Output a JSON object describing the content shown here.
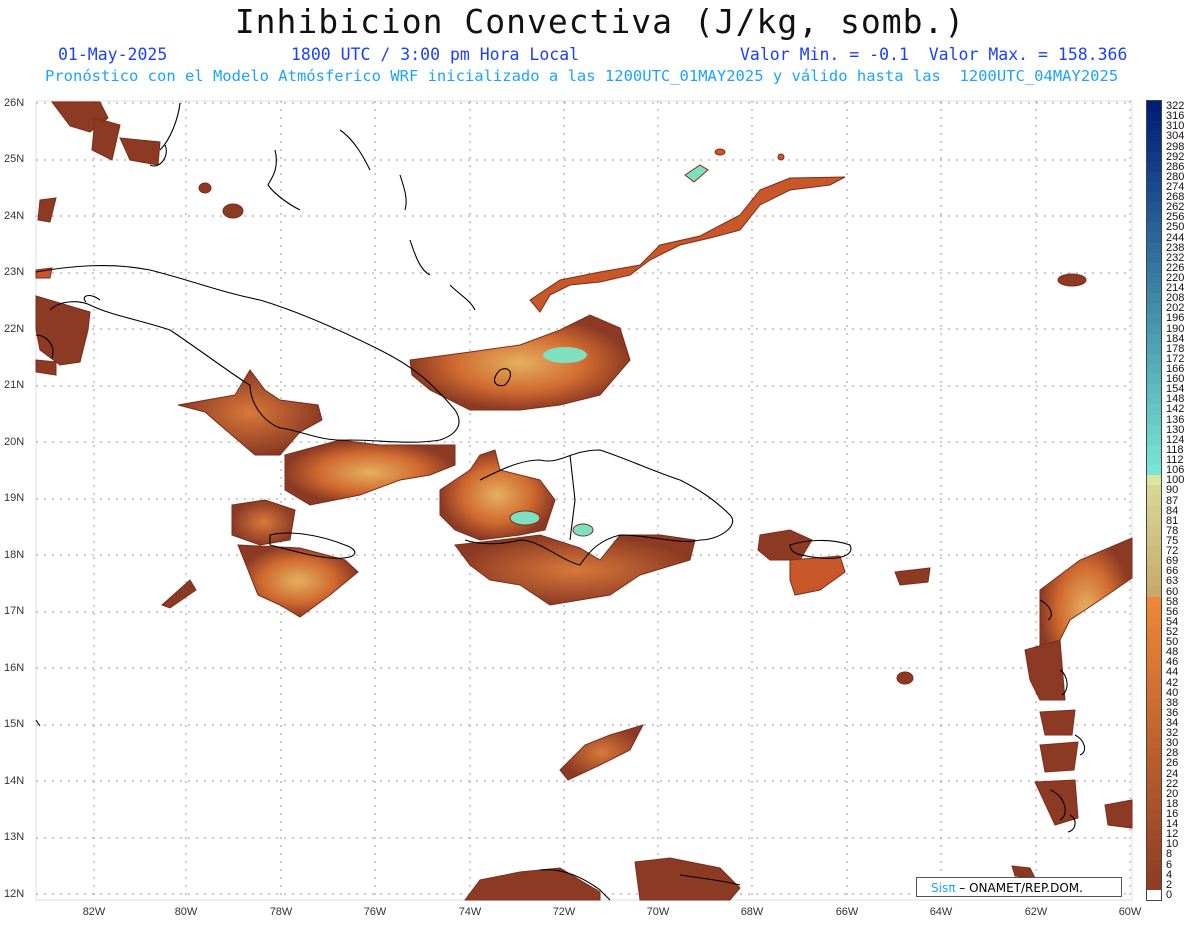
{
  "title": "Inhibicion Convectiva (J/kg, somb.)",
  "header": {
    "date": "01-May-2025",
    "time": "1800 UTC / 3:00 pm Hora Local",
    "minmax": "Valor Min. = -0.1  Valor Max. = 158.366",
    "forecast": "Pronóstico con el Modelo Atmósferico WRF inicializado a las 1200UTC_01MAY2025 y válido hasta las  1200UTC_04MAY2025"
  },
  "lat_labels": [
    "26N",
    "25N",
    "24N",
    "23N",
    "22N",
    "21N",
    "20N",
    "19N",
    "18N",
    "17N",
    "16N",
    "15N",
    "14N",
    "13N",
    "12N"
  ],
  "lon_labels": [
    "82W",
    "80W",
    "78W",
    "76W",
    "74W",
    "72W",
    "70W",
    "68W",
    "66W",
    "64W",
    "62W",
    "60W"
  ],
  "colorbar_labels": [
    "322",
    "316",
    "310",
    "304",
    "298",
    "292",
    "286",
    "280",
    "274",
    "268",
    "262",
    "256",
    "250",
    "244",
    "238",
    "232",
    "226",
    "220",
    "214",
    "208",
    "202",
    "196",
    "190",
    "184",
    "178",
    "172",
    "166",
    "160",
    "154",
    "148",
    "142",
    "136",
    "130",
    "124",
    "118",
    "112",
    "106",
    "100",
    "90",
    "87",
    "84",
    "81",
    "78",
    "75",
    "72",
    "69",
    "66",
    "63",
    "60",
    "58",
    "56",
    "54",
    "52",
    "50",
    "48",
    "46",
    "44",
    "42",
    "40",
    "38",
    "36",
    "34",
    "32",
    "30",
    "28",
    "26",
    "24",
    "22",
    "20",
    "18",
    "16",
    "14",
    "12",
    "10",
    "8",
    "6",
    "4",
    "2",
    "0"
  ],
  "credit": {
    "brand": "Sisπ",
    "text": "– ONAMET/REP.DOM."
  },
  "colors": {
    "low": "#8c3a24",
    "mid": "#c8582a",
    "high": "#e4b060",
    "peak": "#7fe0c0",
    "title": "#111111",
    "date_text": "#1a3fff",
    "forecast_text": "#1aa4ff"
  }
}
